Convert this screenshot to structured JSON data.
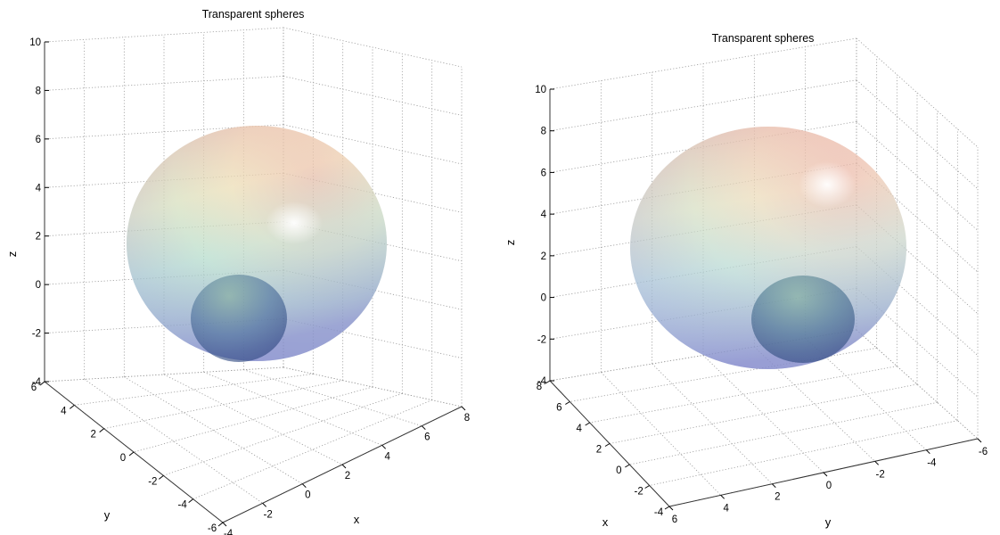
{
  "chart_data": [
    {
      "type": "surface",
      "title": "Transparent spheres",
      "view": "default-3d",
      "grid": true,
      "xlabel": "x",
      "ylabel": "y",
      "zlabel": "z",
      "x_ticks": [
        "-4",
        "-2",
        "0",
        "2",
        "4",
        "6",
        "8"
      ],
      "y_ticks": [
        "6",
        "4",
        "2",
        "0",
        "-2",
        "-4",
        "-6"
      ],
      "z_ticks": [
        "10",
        "8",
        "6",
        "4",
        "2",
        "0",
        "-2",
        "-4"
      ],
      "xlim": [
        -4,
        8
      ],
      "ylim": [
        -6,
        7
      ],
      "zlim": [
        -4,
        10
      ],
      "spheres": [
        {
          "center": [
            2,
            0,
            3
          ],
          "radius": 6,
          "colormap": "jet",
          "alpha": 0.35
        },
        {
          "center": [
            0,
            -2,
            -1
          ],
          "radius": 2.5,
          "color": "#2d4f8a",
          "alpha": 0.55
        }
      ]
    },
    {
      "type": "surface",
      "title": "Transparent spheres",
      "view": "rotated-3d",
      "grid": true,
      "xlabel": "x",
      "ylabel": "y",
      "zlabel": "z",
      "x_ticks": [
        "8",
        "6",
        "4",
        "2",
        "0",
        "-2",
        "-4"
      ],
      "y_ticks": [
        "6",
        "4",
        "2",
        "0",
        "-2",
        "-4",
        "-6"
      ],
      "z_ticks": [
        "10",
        "8",
        "6",
        "4",
        "2",
        "0",
        "-2",
        "-4"
      ],
      "xlim": [
        -4,
        8
      ],
      "ylim": [
        -6,
        7
      ],
      "zlim": [
        -4,
        10
      ],
      "spheres": [
        {
          "center": [
            2,
            0,
            3
          ],
          "radius": 6,
          "colormap": "jet",
          "alpha": 0.35
        },
        {
          "center": [
            0,
            -2,
            -1
          ],
          "radius": 2.5,
          "color": "#2d4f8a",
          "alpha": 0.55
        }
      ]
    }
  ]
}
